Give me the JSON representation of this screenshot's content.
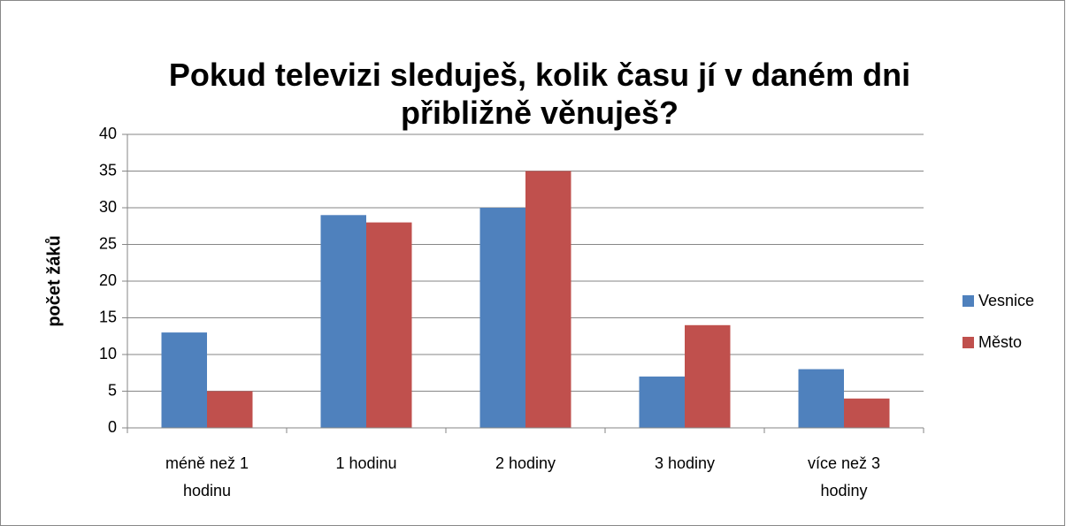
{
  "chart_data": {
    "type": "bar",
    "title": "Pokud televizi sleduješ, kolik času jí v daném dni přibližně věnuješ?",
    "y_label": "počet žáků",
    "categories": [
      "méně než 1 hodinu",
      "1 hodinu",
      "2 hodiny",
      "3 hodiny",
      "více než 3 hodiny"
    ],
    "series": [
      {
        "name": "Vesnice",
        "color": "#4f81bd",
        "values": [
          13,
          29,
          30,
          7,
          8
        ]
      },
      {
        "name": "Město",
        "color": "#c0504d",
        "values": [
          5,
          28,
          35,
          14,
          4
        ]
      }
    ],
    "ylim": [
      0,
      40
    ],
    "yticks": [
      0,
      5,
      10,
      15,
      20,
      25,
      30,
      35,
      40
    ],
    "grid": true,
    "legend": "right"
  }
}
